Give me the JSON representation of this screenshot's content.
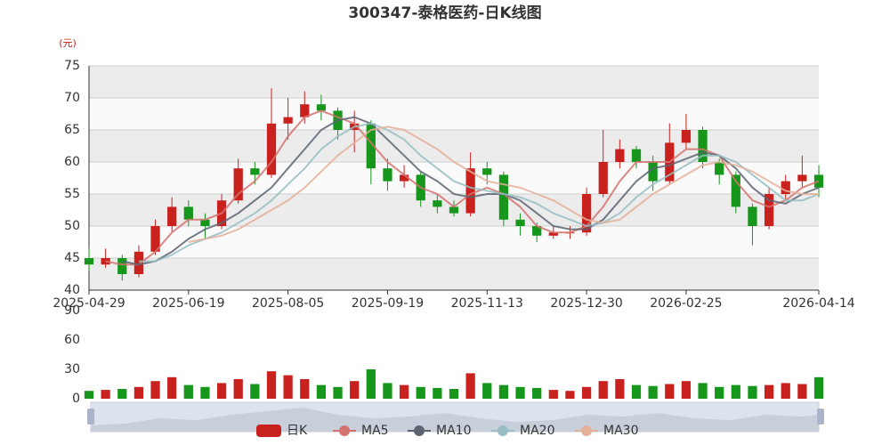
{
  "chart_data": {
    "type": "candlestick",
    "title": "300347-泰格医药-日K线图",
    "unit": "(元)",
    "name": "日K",
    "up_color": "#c8211e",
    "down_color": "#16961b",
    "categories": [
      "2025-04-29",
      null,
      null,
      null,
      null,
      null,
      "2025-06-19",
      null,
      null,
      null,
      null,
      null,
      "2025-08-05",
      null,
      null,
      null,
      null,
      null,
      "2025-09-19",
      null,
      null,
      null,
      null,
      null,
      "2025-11-13",
      null,
      null,
      null,
      null,
      null,
      "2025-12-30",
      null,
      null,
      null,
      null,
      null,
      "2026-02-25",
      null,
      null,
      null,
      null,
      null,
      null,
      null,
      "2026-04-14"
    ],
    "open": [
      45,
      44,
      45,
      42.5,
      46,
      50,
      53,
      51,
      50,
      54,
      59,
      58,
      66,
      67,
      69,
      68,
      65,
      66,
      59,
      57,
      58,
      54,
      53,
      52,
      59,
      58,
      51,
      50,
      48.5,
      49,
      49,
      55,
      60,
      62,
      60,
      57,
      63,
      65,
      60,
      58,
      53,
      50,
      55,
      57,
      58
    ],
    "close": [
      44,
      45,
      42.5,
      46,
      50,
      53,
      51,
      50,
      54,
      59,
      58,
      66,
      67,
      69,
      68,
      65,
      66,
      59,
      57,
      58,
      54,
      53,
      52,
      59,
      58,
      51,
      50,
      48.5,
      49,
      49,
      55,
      60,
      62,
      60,
      57,
      63,
      65,
      60,
      58,
      53,
      50,
      55,
      57,
      58,
      56
    ],
    "low": [
      43,
      43.5,
      41.5,
      42,
      45.5,
      49,
      50,
      48,
      49.5,
      53.5,
      56.5,
      57.5,
      63.5,
      66,
      66.5,
      63.5,
      61.5,
      56.5,
      55.5,
      56,
      53,
      52,
      51.5,
      51.5,
      56.5,
      50,
      48.5,
      47.5,
      48,
      48,
      48.5,
      54.5,
      59,
      59,
      55.5,
      56.5,
      62,
      59,
      56.5,
      52,
      47,
      49.5,
      54,
      56,
      54.5
    ],
    "high": [
      46.5,
      46.5,
      45.5,
      47,
      51,
      54.5,
      54,
      52,
      55,
      60.5,
      60,
      71.5,
      70,
      71,
      70.5,
      68.5,
      68,
      66.5,
      60.5,
      59.5,
      58.5,
      55,
      54,
      61.5,
      60,
      58.5,
      52,
      50.5,
      50,
      50,
      56,
      65,
      63.5,
      62.5,
      61,
      66,
      67.5,
      65.5,
      60.5,
      58.5,
      53.5,
      56,
      58,
      61,
      59.5
    ],
    "ylim": [
      40,
      75
    ],
    "yticks": [
      40,
      45,
      50,
      55,
      60,
      65,
      70,
      75
    ],
    "series": [
      {
        "name": "MA5",
        "color": "#d3726f",
        "values": [
          null,
          44.5,
          44,
          44,
          46,
          49,
          51,
          51,
          52,
          55,
          57,
          60,
          64,
          67,
          68,
          67,
          66,
          63,
          60,
          58,
          56,
          55,
          53,
          55,
          56,
          55,
          53,
          50,
          49,
          49,
          50,
          53,
          57,
          60,
          60,
          60,
          62,
          62,
          61,
          57,
          54,
          53,
          54,
          56,
          57
        ]
      },
      {
        "name": "MA10",
        "color": "#5a6472",
        "values": [
          null,
          null,
          44.5,
          44,
          44.5,
          46,
          48,
          49.5,
          50.5,
          52,
          54,
          56,
          59,
          62,
          65,
          66.5,
          67,
          66,
          63.5,
          61,
          58.5,
          57,
          55,
          54.5,
          55,
          55,
          54,
          52,
          50,
          49.5,
          49.5,
          51,
          54,
          57,
          59,
          59.5,
          60.5,
          61.5,
          61,
          59,
          56,
          54,
          53.5,
          55,
          56
        ]
      },
      {
        "name": "MA20",
        "color": "#96bec3",
        "values": [
          null,
          null,
          null,
          44.5,
          44.5,
          45.5,
          47,
          48,
          49,
          50.5,
          52,
          54,
          56.5,
          59,
          62,
          64,
          65.5,
          66,
          65,
          63.5,
          61,
          59,
          57,
          56,
          55.5,
          55,
          54.5,
          53.5,
          52,
          51,
          50,
          50.5,
          52,
          54.5,
          56.5,
          58,
          59.5,
          61,
          61,
          60,
          58,
          56,
          54,
          54,
          55
        ]
      },
      {
        "name": "MA30",
        "color": "#e3b09a",
        "values": [
          null,
          null,
          null,
          null,
          null,
          null,
          47.5,
          48,
          48.5,
          49.5,
          51,
          52.5,
          54,
          56,
          58.5,
          61,
          63,
          65,
          65.5,
          65,
          63.5,
          62,
          60,
          58.5,
          57,
          56.5,
          56,
          55,
          54,
          52.5,
          51,
          50.5,
          51,
          53,
          55,
          56.5,
          58,
          59.5,
          60,
          59.5,
          58.5,
          57,
          55.5,
          55,
          55
        ]
      }
    ],
    "volume": {
      "ylim": [
        0,
        90
      ],
      "yticks": [
        0,
        30,
        60,
        90
      ],
      "values": [
        8,
        9,
        10,
        12,
        18,
        22,
        14,
        12,
        16,
        20,
        15,
        28,
        24,
        20,
        14,
        12,
        18,
        30,
        16,
        14,
        12,
        11,
        10,
        26,
        16,
        14,
        12,
        11,
        9,
        8,
        12,
        18,
        20,
        14,
        13,
        15,
        18,
        16,
        12,
        14,
        13,
        14,
        16,
        15,
        22
      ]
    }
  }
}
